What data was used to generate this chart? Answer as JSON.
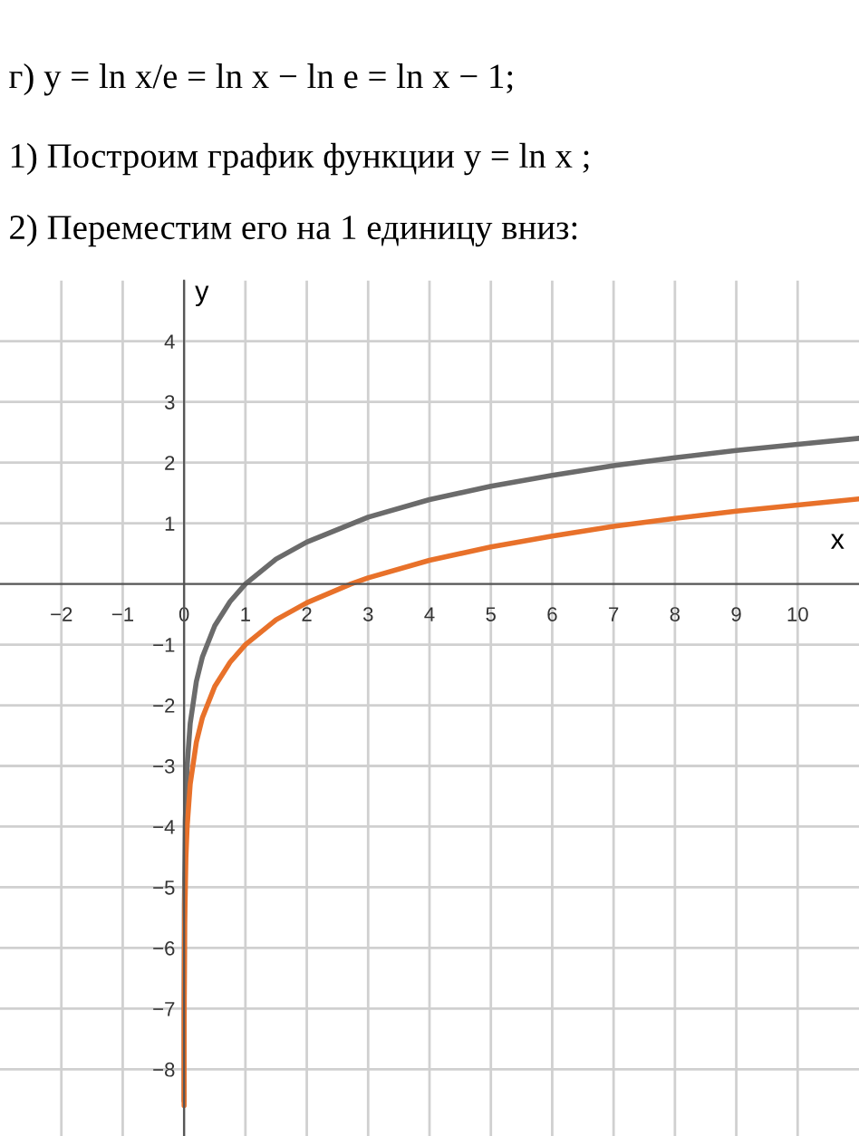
{
  "chart_data": {
    "type": "line",
    "title": "г) y = ln x/e = ln x − ln e = ln x − 1;",
    "annotations": [
      "1) Построим график функции y = ln x ;",
      "2) Переместим его на 1 единицу вниз:"
    ],
    "xlabel": "x",
    "ylabel": "y",
    "xlim": [
      -3,
      11
    ],
    "ylim": [
      -9.1,
      5
    ],
    "xticks": [
      {
        "value": -2,
        "label": "−2"
      },
      {
        "value": -1,
        "label": "−1"
      },
      0,
      1,
      2,
      3,
      4,
      5,
      6,
      7,
      8,
      9,
      10
    ],
    "yticks": [
      {
        "value": -8,
        "label": "−8"
      },
      {
        "value": -7,
        "label": "−7"
      },
      {
        "value": -6,
        "label": "−6"
      },
      {
        "value": -5,
        "label": "−5"
      },
      {
        "value": -4,
        "label": "−4"
      },
      {
        "value": -3,
        "label": "−3"
      },
      {
        "value": -2,
        "label": "−2"
      },
      {
        "value": -1,
        "label": "−1"
      },
      1,
      2,
      3,
      4
    ],
    "grid": true,
    "legend": false,
    "series": [
      {
        "color": "#6b6b6b",
        "x": [
          0.0002,
          0.001,
          0.005,
          0.02,
          0.05,
          0.1,
          0.2,
          0.3,
          0.5,
          0.75,
          1,
          1.5,
          2,
          3,
          4,
          5,
          6,
          7,
          8,
          9,
          10,
          11
        ],
        "values": [
          -8.52,
          -6.91,
          -5.3,
          -3.91,
          -3.0,
          -2.3,
          -1.61,
          -1.2,
          -0.69,
          -0.29,
          0,
          0.41,
          0.69,
          1.1,
          1.39,
          1.61,
          1.79,
          1.95,
          2.08,
          2.2,
          2.3,
          2.4
        ]
      },
      {
        "color": "#e8712a",
        "x": [
          0.0005,
          0.002,
          0.01,
          0.03,
          0.05,
          0.1,
          0.2,
          0.3,
          0.5,
          0.75,
          1,
          1.5,
          2,
          2.72,
          3,
          4,
          5,
          6,
          7,
          8,
          9,
          10,
          11
        ],
        "values": [
          -8.6,
          -7.21,
          -5.61,
          -4.51,
          -4.0,
          -3.3,
          -2.61,
          -2.2,
          -1.69,
          -1.29,
          -1,
          -0.59,
          -0.31,
          0,
          0.1,
          0.39,
          0.61,
          0.79,
          0.95,
          1.08,
          1.2,
          1.3,
          1.4
        ]
      }
    ]
  }
}
